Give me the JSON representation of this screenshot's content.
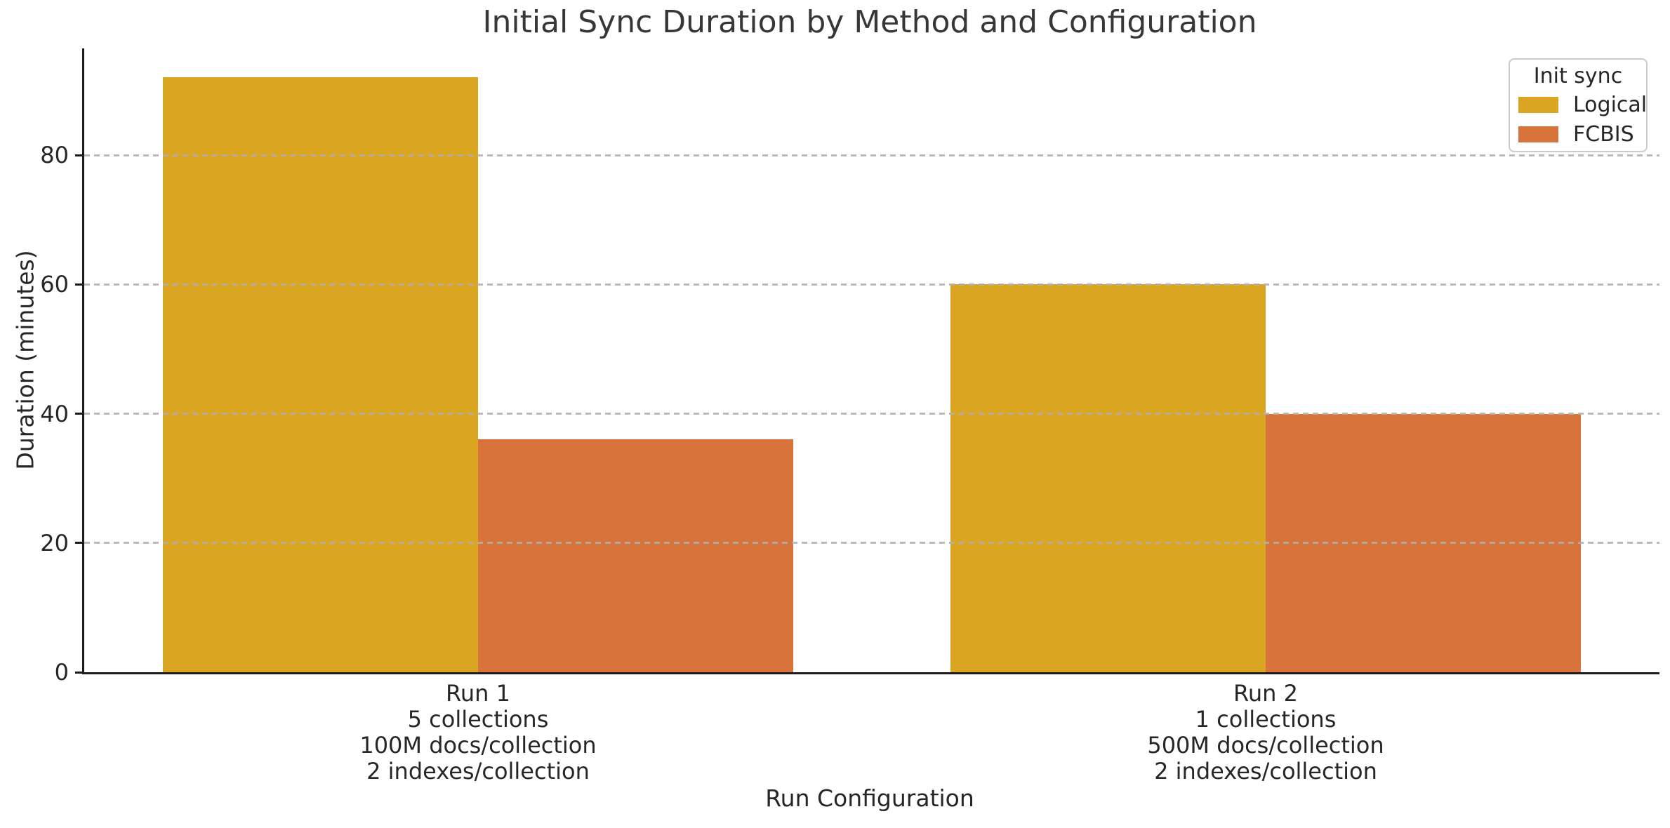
{
  "chart_data": {
    "type": "bar",
    "title": "Initial Sync Duration by Method and Configuration",
    "xlabel": "Run Configuration",
    "ylabel": "Duration (minutes)",
    "legend": {
      "title": "Init sync",
      "position": "upper right"
    },
    "categories": [
      {
        "lines": [
          "Run 1",
          "5 collections",
          "100M docs/collection",
          "2 indexes/collection"
        ]
      },
      {
        "lines": [
          "Run 2",
          "1 collections",
          "500M docs/collection",
          "2 indexes/collection"
        ]
      }
    ],
    "series": [
      {
        "name": "Logical",
        "color": "#DAA520",
        "values": [
          92,
          60
        ]
      },
      {
        "name": "FCBIS",
        "color": "#D8733B",
        "values": [
          36,
          40
        ]
      }
    ],
    "yticks": [
      0,
      20,
      40,
      60,
      80
    ],
    "ylim": [
      0,
      96.5
    ],
    "grid": "horizontal-dashed-over-bars",
    "group_width": 0.8
  }
}
